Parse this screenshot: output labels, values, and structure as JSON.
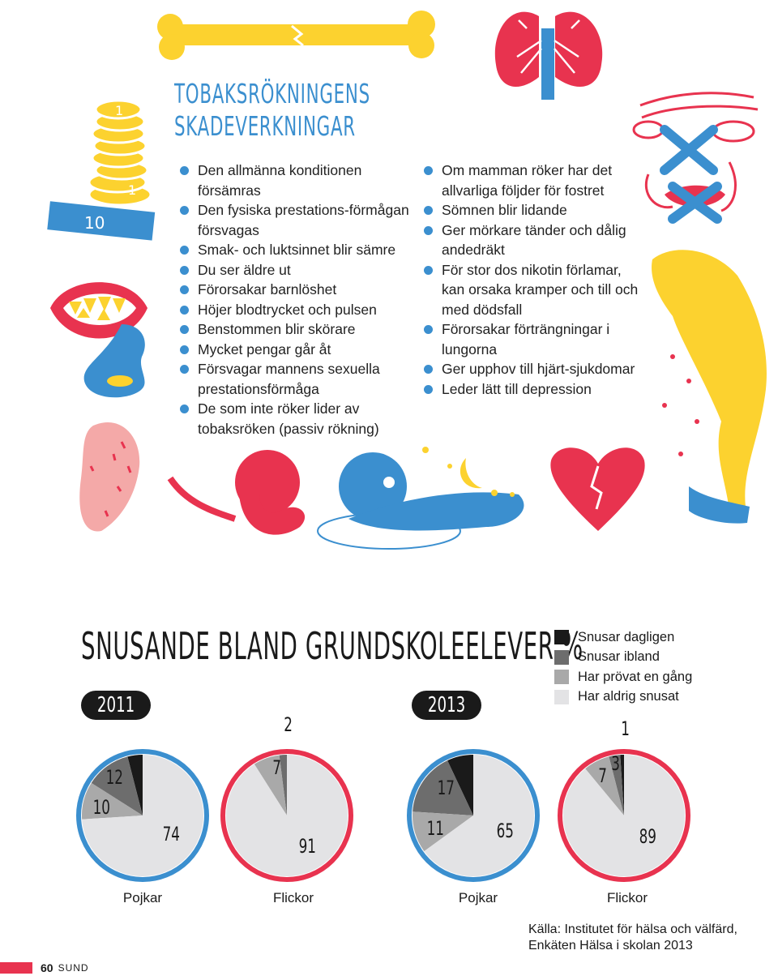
{
  "title": {
    "line1": "TOBAKSRÖKNINGENS",
    "line2": "SKADEVERKNINGAR"
  },
  "left_list": [
    "Den allmänna konditionen försämras",
    "Den fysiska prestations-förmågan försvagas",
    "Smak- och luktsinnet blir sämre",
    "Du ser äldre ut",
    "Förorsakar barnlöshet",
    "Höjer blodtrycket och pulsen",
    "Benstommen blir skörare",
    "Mycket pengar går åt",
    "Försvagar mannens sexuella prestationsförmåga",
    "De som inte röker lider av tobaksröken (passiv rökning)"
  ],
  "right_list": [
    "Om mamman röker har det allvarliga följder för fostret",
    "Sömnen blir lidande",
    "Ger mörkare tänder och dålig andedräkt",
    "För stor dos nikotin förlamar, kan orsaka kramper och till och med dödsfall",
    "Förorsakar förträngningar i lungorna",
    "Ger upphov till hjärt-sjukdomar",
    "Leder lätt till depression"
  ],
  "coin_labels": [
    "1",
    "1",
    "10"
  ],
  "section_title": "SNUSANDE BLAND GRUNDSKOLEELEVER %",
  "years": [
    "2011",
    "2013"
  ],
  "legend": [
    {
      "label": "Snusar dagligen",
      "color": "#1a1a1a"
    },
    {
      "label": "Snusar ibland",
      "color": "#6d6d6d"
    },
    {
      "label": "Har prövat en gång",
      "color": "#a9a9a9"
    },
    {
      "label": "Har aldrig snusat",
      "color": "#e3e3e5"
    }
  ],
  "colors": {
    "blue": "#3b8fcf",
    "red": "#e8334f",
    "yellow": "#fcd22f",
    "pink": "#f4a9a8"
  },
  "chart_data": [
    {
      "type": "pie",
      "year": "2011",
      "group": "Pojkar",
      "ring_color": "#3b8fcf",
      "slices": [
        {
          "name": "Snusar dagligen",
          "value": 4
        },
        {
          "name": "Snusar ibland",
          "value": 12
        },
        {
          "name": "Har prövat en gång",
          "value": 10
        },
        {
          "name": "Har aldrig snusat",
          "value": 74
        }
      ],
      "labels": [
        "12",
        "10",
        "74"
      ]
    },
    {
      "type": "pie",
      "year": "2011",
      "group": "Flickor",
      "ring_color": "#e8334f",
      "slices": [
        {
          "name": "Snusar dagligen",
          "value": 0
        },
        {
          "name": "Snusar ibland",
          "value": 2
        },
        {
          "name": "Har prövat en gång",
          "value": 7
        },
        {
          "name": "Har aldrig snusat",
          "value": 91
        }
      ],
      "labels": [
        "2",
        "7",
        "91"
      ]
    },
    {
      "type": "pie",
      "year": "2013",
      "group": "Pojkar",
      "ring_color": "#3b8fcf",
      "slices": [
        {
          "name": "Snusar dagligen",
          "value": 7
        },
        {
          "name": "Snusar ibland",
          "value": 17
        },
        {
          "name": "Har prövat en gång",
          "value": 11
        },
        {
          "name": "Har aldrig snusat",
          "value": 65
        }
      ],
      "labels": [
        "17",
        "11",
        "65"
      ]
    },
    {
      "type": "pie",
      "year": "2013",
      "group": "Flickor",
      "ring_color": "#e8334f",
      "slices": [
        {
          "name": "Snusar dagligen",
          "value": 1
        },
        {
          "name": "Snusar ibland",
          "value": 3
        },
        {
          "name": "Har prövat en gång",
          "value": 7
        },
        {
          "name": "Har aldrig snusat",
          "value": 89
        }
      ],
      "labels": [
        "1",
        "3",
        "7",
        "89"
      ]
    }
  ],
  "source": {
    "line1": "Källa: Institutet för hälsa och välfärd,",
    "line2": "Enkäten Hälsa i skolan 2013"
  },
  "footer": {
    "page": "60",
    "magazine": "SUND"
  }
}
